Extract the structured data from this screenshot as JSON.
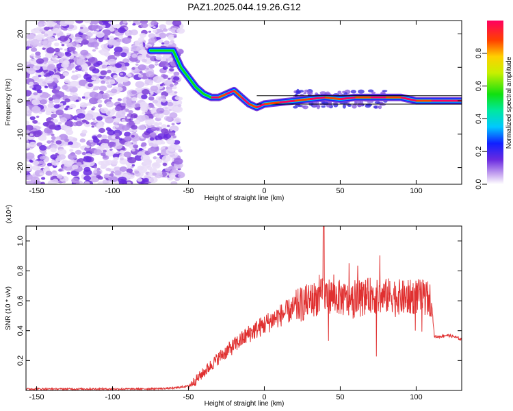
{
  "title": "PAZ1.2025.044.19.26.G12",
  "chart_data": [
    {
      "type": "heatmap",
      "xlabel": "Height of straight line (km)",
      "ylabel": "Frequency (Hz)",
      "xlim": [
        -157,
        130
      ],
      "ylim": [
        -25,
        24
      ],
      "xticks": [
        -150,
        -100,
        -50,
        0,
        50,
        100
      ],
      "yticks": [
        -20,
        -10,
        0,
        10,
        20
      ],
      "grid": false,
      "colorbar": {
        "label": "Normalized spectral amplitude",
        "range": [
          0,
          1
        ],
        "ticks": [
          "0.0",
          "0.2",
          "0.4",
          "0.6",
          "0.8"
        ]
      },
      "ridge": {
        "x": [
          -75,
          -60,
          -55,
          -50,
          -45,
          -40,
          -35,
          -30,
          -25,
          -20,
          -15,
          -10,
          -5,
          0,
          10,
          20,
          30,
          40,
          50,
          60,
          70,
          80,
          90,
          100,
          110,
          130
        ],
        "y": [
          15,
          15,
          10,
          7,
          4,
          2,
          1,
          1,
          2,
          3,
          1,
          -1,
          -2,
          -1,
          -0.5,
          0,
          0.5,
          1,
          0.5,
          1,
          1,
          1,
          1,
          0,
          0,
          0
        ]
      }
    },
    {
      "type": "line",
      "xlabel": "Height of straight line (km)",
      "ylabel": "SNR (10 * v/v)",
      "y_multiplier": "(x10⁴)",
      "xlim": [
        -157,
        130
      ],
      "ylim": [
        0,
        1.1
      ],
      "xticks": [
        -150,
        -100,
        -50,
        0,
        50,
        100
      ],
      "yticks": [
        "0.2",
        "0.4",
        "0.6",
        "0.8",
        "1.0"
      ],
      "color": "#e03030",
      "series": [
        {
          "x": [
            -157,
            -120,
            -80,
            -60,
            -50,
            -45,
            -40,
            -30,
            -20,
            -10,
            0,
            10,
            20,
            25,
            30,
            35,
            40,
            45,
            50,
            55,
            60,
            65,
            70,
            75,
            80,
            85,
            90,
            95,
            100,
            105,
            110,
            112,
            115,
            120,
            125,
            130
          ],
          "values": [
            0.01,
            0.01,
            0.01,
            0.015,
            0.03,
            0.07,
            0.12,
            0.22,
            0.3,
            0.38,
            0.44,
            0.5,
            0.55,
            0.58,
            0.6,
            0.62,
            0.64,
            0.63,
            0.62,
            0.6,
            0.6,
            0.62,
            0.64,
            0.62,
            0.63,
            0.64,
            0.62,
            0.62,
            0.63,
            0.62,
            0.61,
            0.36,
            0.36,
            0.37,
            0.36,
            0.34
          ]
        }
      ]
    }
  ]
}
